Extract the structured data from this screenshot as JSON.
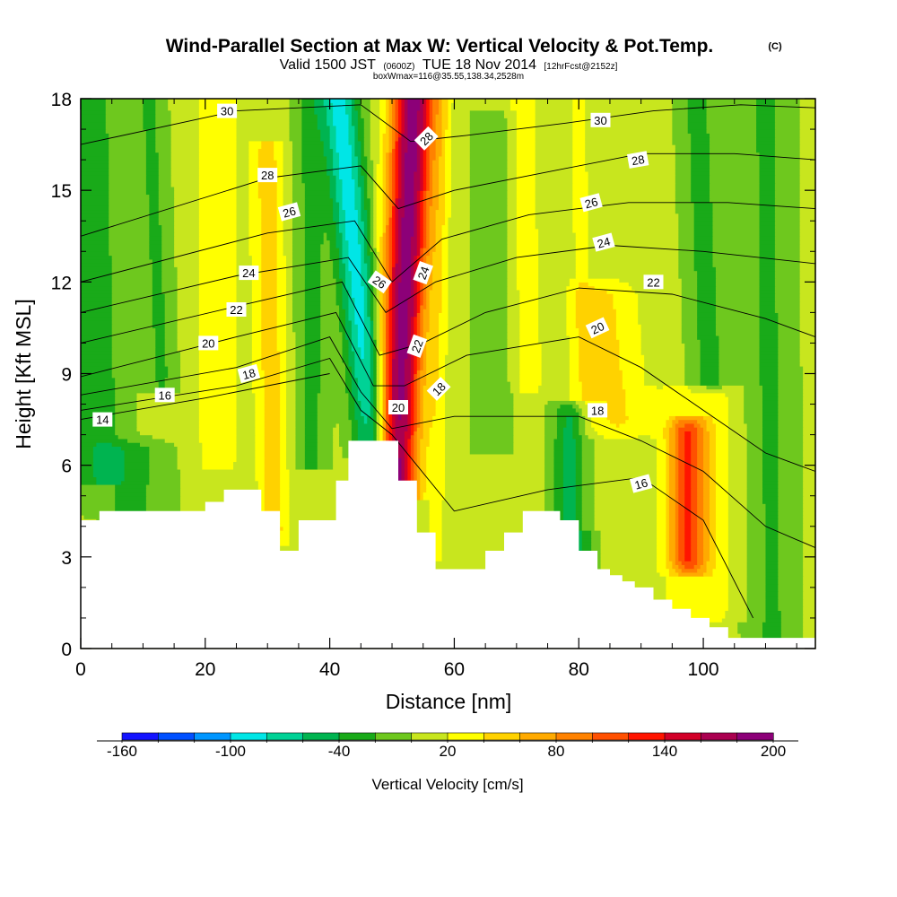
{
  "chart_data": {
    "type": "heatmap",
    "title": "Wind-Parallel Section at Max W: Vertical Velocity & Pot.Temp.",
    "title_mark": "(C)",
    "subtitle_parts": [
      "Valid 1500 JST",
      "(0600Z)",
      "TUE 18 Nov 2014",
      "[12hrFcst@2152z]"
    ],
    "subtitle2": "boxWmax=116@35.55,138.34,2528m",
    "xlabel": "Distance [nm]",
    "ylabel": "Height [Kft MSL]",
    "xlim": [
      0,
      118
    ],
    "ylim": [
      0,
      18
    ],
    "x_ticks": [
      0,
      20,
      40,
      60,
      80,
      100
    ],
    "y_ticks": [
      0,
      3,
      6,
      9,
      12,
      15,
      18
    ],
    "x_tick_labels": [
      "0",
      "20",
      "40",
      "60",
      "80",
      "100"
    ],
    "y_tick_labels": [
      "0",
      "3",
      "6",
      "9",
      "12",
      "15",
      "18"
    ],
    "colorbar": {
      "label": "Vertical Velocity [cm/s]",
      "levels": [
        -160,
        -140,
        -120,
        -100,
        -80,
        -60,
        -40,
        -20,
        0,
        20,
        40,
        60,
        80,
        100,
        120,
        140,
        160,
        180,
        200
      ],
      "colors": [
        "#1414ff",
        "#0050ff",
        "#0096ff",
        "#00e6e6",
        "#00d296",
        "#00b450",
        "#19aa19",
        "#6ec81e",
        "#c8e61e",
        "#ffff00",
        "#ffd200",
        "#ffaa00",
        "#ff8200",
        "#ff5000",
        "#ff1400",
        "#d20028",
        "#aa0050",
        "#8c0078",
        "#640096"
      ],
      "tick_values": [
        -160,
        -100,
        -40,
        20,
        80,
        140,
        200
      ],
      "tick_labels": [
        "-160",
        "-100",
        "-40",
        "20",
        "80",
        "140",
        "200"
      ]
    },
    "w_features": [
      {
        "x0": 47,
        "y0": 6.8,
        "x1": 41.5,
        "y1": 18,
        "width": 3.0,
        "peak": -95
      },
      {
        "x0": 50.5,
        "y0": 5.5,
        "x1": 53.5,
        "y1": 18,
        "width": 3.5,
        "peak": 185
      },
      {
        "x0": 57,
        "y0": 3.5,
        "x1": 58,
        "y1": 18,
        "width": 1.6,
        "peak": 25
      },
      {
        "x0": 31,
        "y0": 4.0,
        "x1": 30,
        "y1": 16,
        "width": 2.5,
        "peak": 45
      },
      {
        "x0": 3,
        "y0": 6.0,
        "x1": 1.5,
        "y1": 18,
        "width": 4.5,
        "peak": -35
      },
      {
        "x0": 22,
        "y0": 6.5,
        "x1": 22,
        "y1": 18,
        "width": 4.0,
        "peak": 25
      },
      {
        "x0": 37,
        "y0": 6.5,
        "x1": 37,
        "y1": 18,
        "width": 2.5,
        "peak": -32
      },
      {
        "x0": 13,
        "y0": 9.0,
        "x1": 11,
        "y1": 18,
        "width": 2.5,
        "peak": -28
      },
      {
        "x0": 81,
        "y0": 4.5,
        "x1": 80,
        "y1": 18,
        "width": 2.0,
        "peak": 20
      },
      {
        "x0": 79,
        "y0": 3.0,
        "x1": 79,
        "y1": 7.5,
        "width": 3.0,
        "peak": -60
      },
      {
        "x0": 86,
        "y0": 7.5,
        "x1": 84,
        "y1": 11.5,
        "width": 5.5,
        "peak": 38
      },
      {
        "x0": 97.5,
        "y0": 3.0,
        "x1": 97.5,
        "y1": 7.0,
        "width": 3.0,
        "peak": 88
      },
      {
        "x0": 99,
        "y0": 1.5,
        "x1": 99,
        "y1": 8.0,
        "width": 6.0,
        "peak": 32
      },
      {
        "x0": 101,
        "y0": 9.0,
        "x1": 99,
        "y1": 18,
        "width": 3.0,
        "peak": -32
      },
      {
        "x0": 72,
        "y0": 9.0,
        "x1": 71,
        "y1": 18,
        "width": 2.5,
        "peak": 25
      },
      {
        "x0": 111,
        "y0": 0.5,
        "x1": 110,
        "y1": 18,
        "width": 4.0,
        "peak": -28
      },
      {
        "x0": 66,
        "y0": 7.0,
        "x1": 66,
        "y1": 17,
        "width": 3.0,
        "peak": -22
      },
      {
        "x0": 8,
        "y0": 4.5,
        "x1": 8,
        "y1": 6.5,
        "width": 6.0,
        "peak": -30
      }
    ],
    "terrain": [
      [
        0,
        4.2
      ],
      [
        3,
        4.5
      ],
      [
        20,
        4.8
      ],
      [
        23,
        5.2
      ],
      [
        29,
        4.5
      ],
      [
        32,
        3.2
      ],
      [
        35,
        4.2
      ],
      [
        37,
        4.2
      ],
      [
        41,
        5.5
      ],
      [
        43,
        6.8
      ],
      [
        51,
        5.5
      ],
      [
        54,
        3.8
      ],
      [
        57,
        2.6
      ],
      [
        65,
        3.2
      ],
      [
        68,
        3.8
      ],
      [
        71,
        4.5
      ],
      [
        77,
        4.2
      ],
      [
        80,
        3.2
      ],
      [
        83,
        2.6
      ],
      [
        85,
        2.4
      ],
      [
        87,
        2.2
      ],
      [
        89,
        2.0
      ],
      [
        92,
        1.6
      ],
      [
        95,
        1.3
      ],
      [
        98,
        1.0
      ],
      [
        101,
        0.7
      ],
      [
        104,
        0.35
      ],
      [
        118,
        0.35
      ]
    ],
    "theta_contours": [
      {
        "label": "14",
        "label_x": 3.5,
        "pts": [
          [
            0,
            7.5
          ],
          [
            20,
            8.2
          ],
          [
            40,
            9.0
          ]
        ]
      },
      {
        "label": "16",
        "label_x": 13,
        "pts": [
          [
            0,
            7.8
          ],
          [
            25,
            8.6
          ],
          [
            40,
            9.5
          ],
          [
            45,
            7.8
          ],
          [
            50,
            7.0
          ],
          [
            60,
            4.5
          ],
          [
            75,
            5.2
          ],
          [
            90,
            5.6
          ],
          [
            100,
            4.2
          ],
          [
            108,
            1.0
          ]
        ]
      },
      {
        "label": "18",
        "label_x": 26,
        "pts": [
          [
            0,
            8.3
          ],
          [
            25,
            9.2
          ],
          [
            40,
            10.2
          ],
          [
            45,
            8.4
          ],
          [
            50,
            7.2
          ],
          [
            60,
            7.6
          ],
          [
            80,
            7.6
          ],
          [
            90,
            6.8
          ],
          [
            100,
            5.8
          ],
          [
            110,
            4.0
          ],
          [
            118,
            3.3
          ]
        ]
      },
      {
        "label": "20",
        "label_x": 19,
        "pts": [
          [
            0,
            8.9
          ],
          [
            25,
            10.2
          ],
          [
            41,
            11.0
          ],
          [
            47,
            8.6
          ],
          [
            52,
            8.6
          ],
          [
            62,
            9.6
          ],
          [
            80,
            10.2
          ],
          [
            90,
            9.2
          ],
          [
            100,
            7.8
          ],
          [
            110,
            6.4
          ],
          [
            118,
            5.8
          ]
        ]
      },
      {
        "label": "22",
        "label_x": 24,
        "pts": [
          [
            0,
            10.0
          ],
          [
            25,
            11.2
          ],
          [
            42,
            12.0
          ],
          [
            48,
            9.6
          ],
          [
            55,
            10.0
          ],
          [
            65,
            11.0
          ],
          [
            80,
            11.8
          ],
          [
            95,
            11.6
          ],
          [
            110,
            10.8
          ],
          [
            118,
            10.2
          ]
        ]
      },
      {
        "label": "24",
        "label_x": 25,
        "pts": [
          [
            0,
            11.0
          ],
          [
            25,
            12.2
          ],
          [
            43,
            12.8
          ],
          [
            49,
            11.0
          ],
          [
            57,
            12.0
          ],
          [
            70,
            12.8
          ],
          [
            85,
            13.2
          ],
          [
            100,
            13.0
          ],
          [
            118,
            12.6
          ]
        ]
      },
      {
        "label": "26",
        "label_x": 32,
        "pts": [
          [
            0,
            12.0
          ],
          [
            30,
            13.6
          ],
          [
            44,
            14.0
          ],
          [
            50,
            12.0
          ],
          [
            58,
            13.4
          ],
          [
            72,
            14.2
          ],
          [
            88,
            14.6
          ],
          [
            104,
            14.6
          ],
          [
            118,
            14.4
          ]
        ]
      },
      {
        "label": "28",
        "label_x": 30,
        "pts": [
          [
            0,
            13.5
          ],
          [
            30,
            15.4
          ],
          [
            45,
            15.8
          ],
          [
            51,
            14.4
          ],
          [
            60,
            15.0
          ],
          [
            75,
            15.6
          ],
          [
            90,
            16.2
          ],
          [
            105,
            16.2
          ],
          [
            118,
            16.0
          ]
        ]
      },
      {
        "label": "30",
        "label_x": 23,
        "pts": [
          [
            0,
            16.5
          ],
          [
            25,
            17.6
          ],
          [
            45,
            17.8
          ],
          [
            53,
            16.6
          ],
          [
            62,
            16.8
          ],
          [
            78,
            17.2
          ],
          [
            92,
            17.6
          ],
          [
            106,
            17.8
          ],
          [
            118,
            17.7
          ]
        ]
      }
    ],
    "theta_labels": [
      {
        "text": "30",
        "x": 23.5,
        "y": 17.6,
        "rot": 0
      },
      {
        "text": "28",
        "x": 30,
        "y": 15.5,
        "rot": 0
      },
      {
        "text": "26",
        "x": 33.5,
        "y": 14.3,
        "rot": -15
      },
      {
        "text": "24",
        "x": 27,
        "y": 12.3,
        "rot": 0
      },
      {
        "text": "22",
        "x": 25,
        "y": 11.1,
        "rot": 0
      },
      {
        "text": "20",
        "x": 20.5,
        "y": 10.0,
        "rot": 0
      },
      {
        "text": "18",
        "x": 27,
        "y": 9.0,
        "rot": -15
      },
      {
        "text": "16",
        "x": 13.5,
        "y": 8.3,
        "rot": 0
      },
      {
        "text": "14",
        "x": 3.5,
        "y": 7.5,
        "rot": 0
      },
      {
        "text": "26",
        "x": 48,
        "y": 12.0,
        "rot": 35
      },
      {
        "text": "28",
        "x": 55.5,
        "y": 16.7,
        "rot": -45
      },
      {
        "text": "24",
        "x": 55,
        "y": 12.3,
        "rot": -70
      },
      {
        "text": "22",
        "x": 54,
        "y": 9.9,
        "rot": -70
      },
      {
        "text": "20",
        "x": 51,
        "y": 7.9,
        "rot": 0
      },
      {
        "text": "18",
        "x": 57.5,
        "y": 8.5,
        "rot": -45
      },
      {
        "text": "30",
        "x": 83.5,
        "y": 17.3,
        "rot": 0
      },
      {
        "text": "28",
        "x": 89.5,
        "y": 16.0,
        "rot": -10
      },
      {
        "text": "26",
        "x": 82,
        "y": 14.6,
        "rot": -15
      },
      {
        "text": "24",
        "x": 84,
        "y": 13.3,
        "rot": -15
      },
      {
        "text": "22",
        "x": 92,
        "y": 12.0,
        "rot": 0
      },
      {
        "text": "20",
        "x": 83,
        "y": 10.5,
        "rot": -25
      },
      {
        "text": "18",
        "x": 83,
        "y": 7.8,
        "rot": 0
      },
      {
        "text": "16",
        "x": 90,
        "y": 5.4,
        "rot": -15
      }
    ]
  }
}
